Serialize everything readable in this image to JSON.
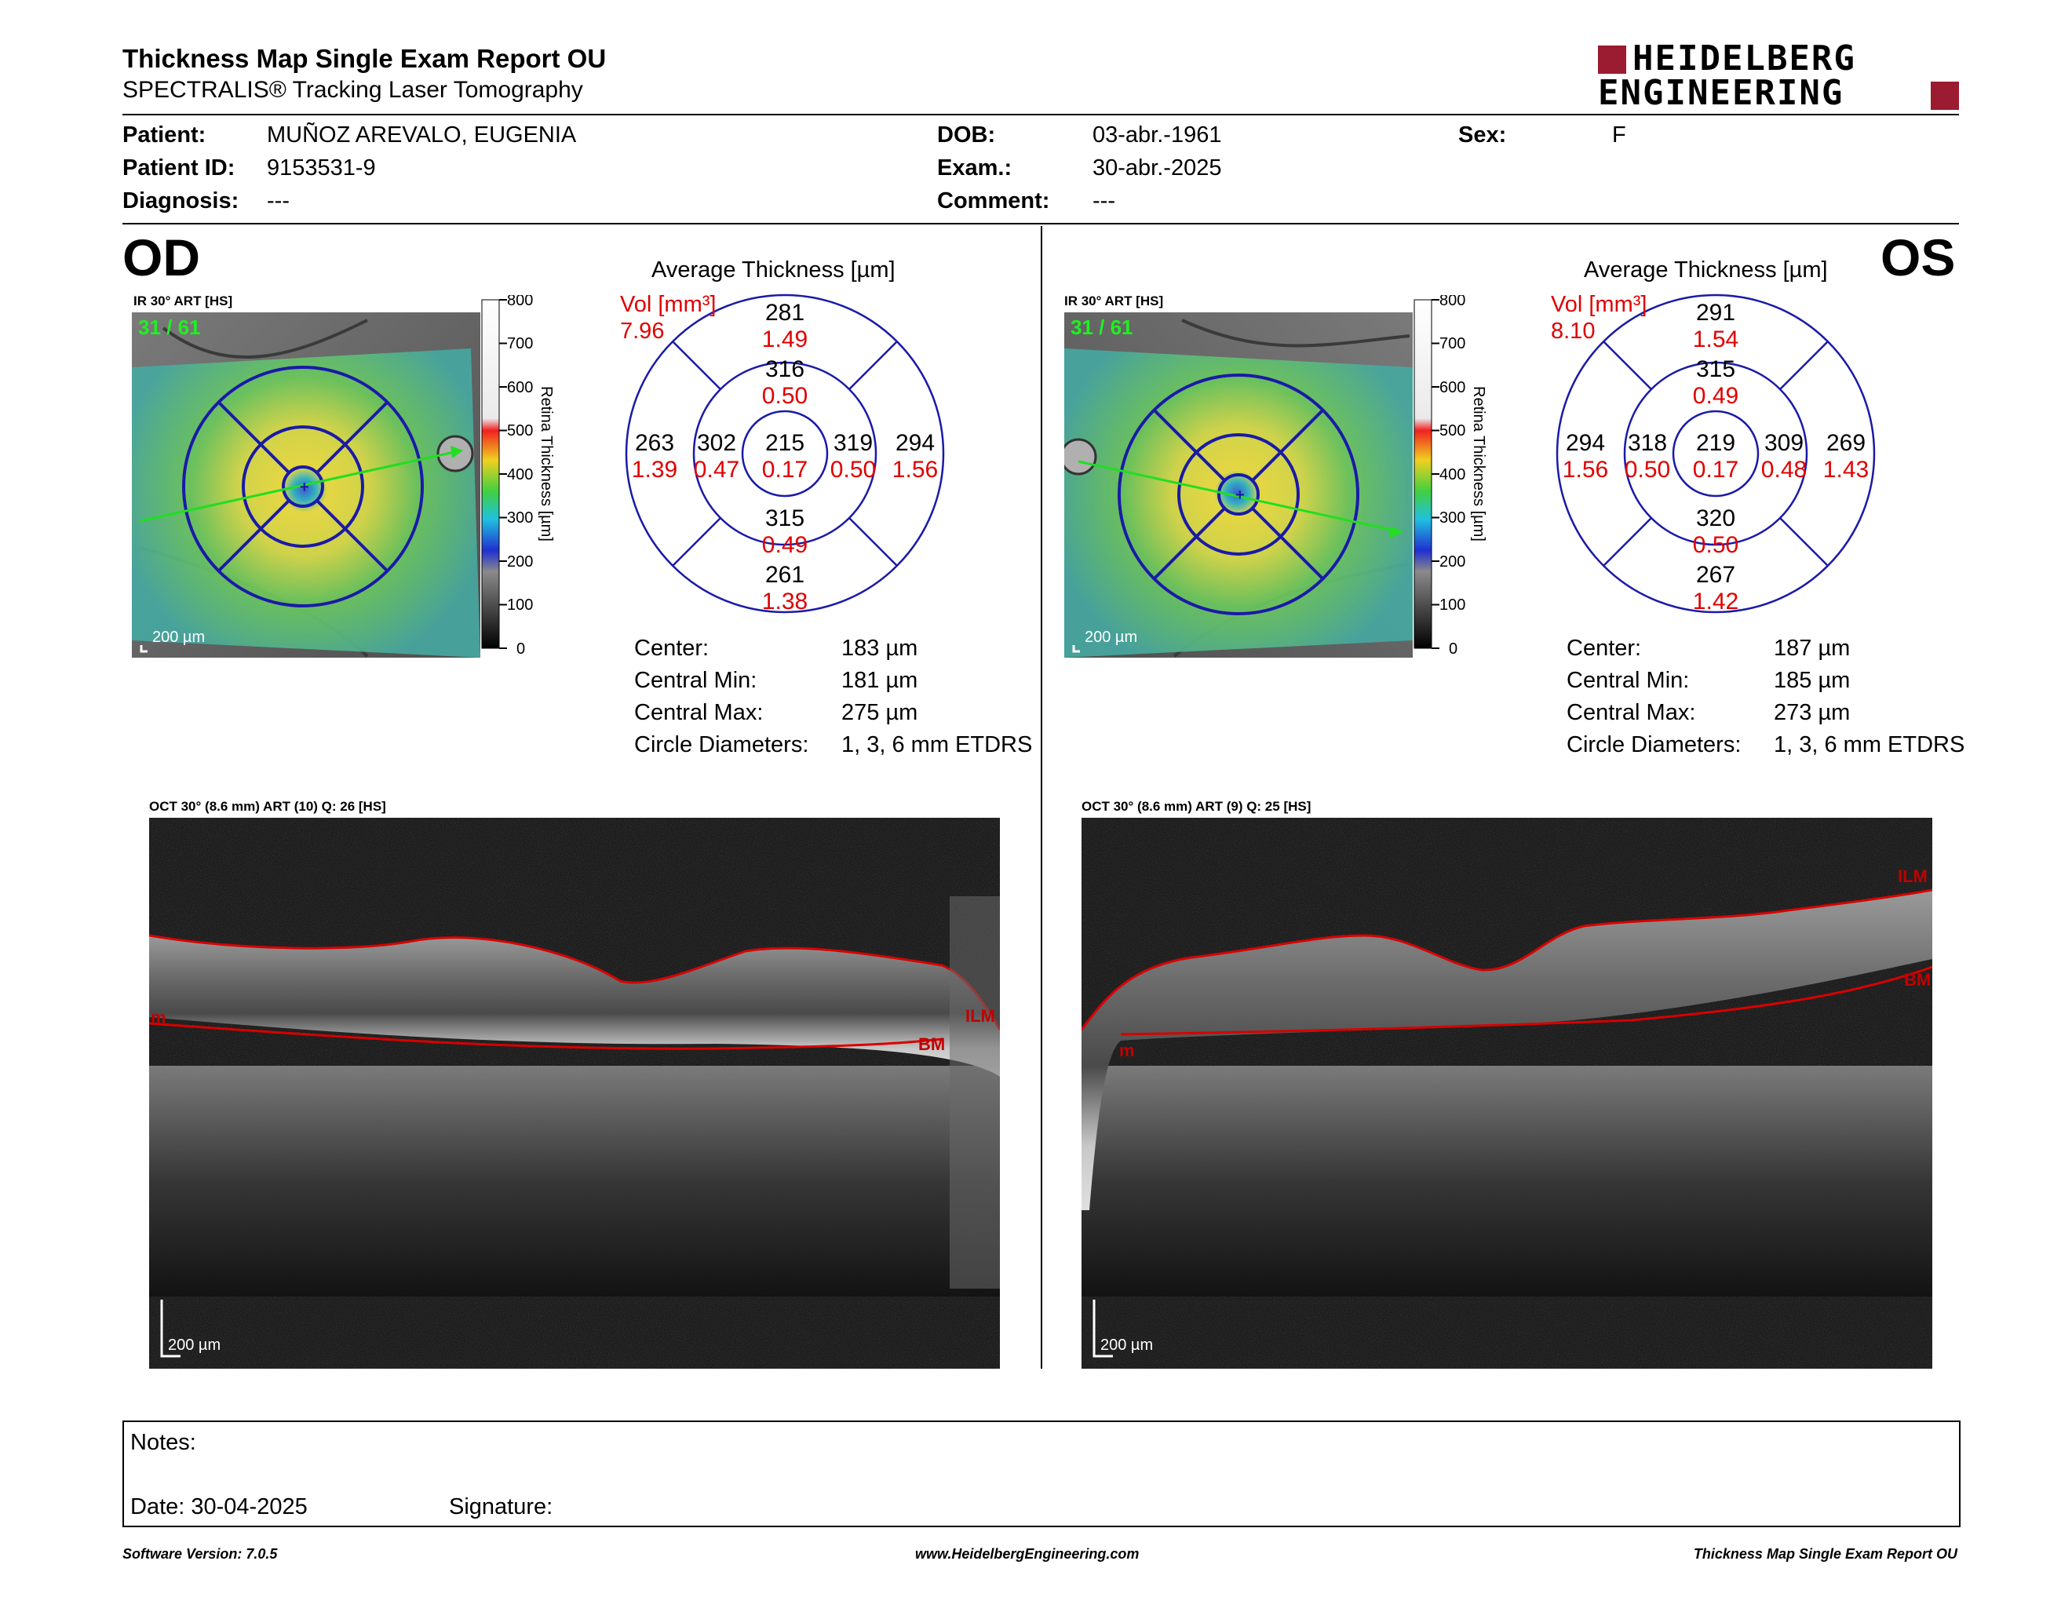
{
  "header": {
    "title": "Thickness Map Single Exam Report OU",
    "subtitle": "SPECTRALIS® Tracking Laser Tomography",
    "logo_line1": "HEIDELBERG",
    "logo_line2": "ENGINEERING"
  },
  "patient": {
    "patient_label": "Patient:",
    "patient_value": "MUÑOZ AREVALO, EUGENIA",
    "id_label": "Patient ID:",
    "id_value": "9153531-9",
    "diagnosis_label": "Diagnosis:",
    "diagnosis_value": "---",
    "dob_label": "DOB:",
    "dob_value": "03-abr.-1961",
    "exam_label": "Exam.:",
    "exam_value": "30-abr.-2025",
    "comment_label": "Comment:",
    "comment_value": "---",
    "sex_label": "Sex:",
    "sex_value": "F"
  },
  "colors": {
    "grid": "#1a1aa8",
    "volume": "#e00000",
    "ilm_line": "#d80000",
    "scan_line": "#22dd22"
  },
  "colorbar": {
    "ticks": [
      "800",
      "700",
      "600",
      "500",
      "400",
      "300",
      "200",
      "100",
      "0"
    ],
    "label": "Retina Thickness [µm]"
  },
  "od": {
    "eye": "OD",
    "ir_label": "IR 30° ART [HS]",
    "frames": "31 / 61",
    "scale": "200 µm",
    "avg_title": "Average Thickness [µm]",
    "vol_label": "Vol [mm³]",
    "vol_total": "7.96",
    "sectors": {
      "outer_sup": {
        "t": "281",
        "v": "1.49"
      },
      "inner_sup": {
        "t": "316",
        "v": "0.50"
      },
      "outer_left": {
        "t": "263",
        "v": "1.39"
      },
      "inner_left": {
        "t": "302",
        "v": "0.47"
      },
      "center": {
        "t": "215",
        "v": "0.17"
      },
      "inner_right": {
        "t": "319",
        "v": "0.50"
      },
      "outer_right": {
        "t": "294",
        "v": "1.56"
      },
      "inner_inf": {
        "t": "315",
        "v": "0.49"
      },
      "outer_inf": {
        "t": "261",
        "v": "1.38"
      }
    },
    "stats": [
      {
        "label": "Center:",
        "value": "183 µm"
      },
      {
        "label": "Central Min:",
        "value": "181 µm"
      },
      {
        "label": "Central Max:",
        "value": "275 µm"
      },
      {
        "label": "Circle Diameters:",
        "value": "1, 3, 6 mm ETDRS"
      }
    ],
    "oct_label": "OCT 30° (8.6 mm) ART (10) Q: 26 [HS]",
    "oct_scale": "200 µm",
    "ilm": "ILM",
    "bm": "BM",
    "edge_tag": "m"
  },
  "os": {
    "eye": "OS",
    "ir_label": "IR 30° ART [HS]",
    "frames": "31 / 61",
    "scale": "200 µm",
    "avg_title": "Average Thickness [µm]",
    "vol_label": "Vol [mm³]",
    "vol_total": "8.10",
    "sectors": {
      "outer_sup": {
        "t": "291",
        "v": "1.54"
      },
      "inner_sup": {
        "t": "315",
        "v": "0.49"
      },
      "outer_left": {
        "t": "294",
        "v": "1.56"
      },
      "inner_left": {
        "t": "318",
        "v": "0.50"
      },
      "center": {
        "t": "219",
        "v": "0.17"
      },
      "inner_right": {
        "t": "309",
        "v": "0.48"
      },
      "outer_right": {
        "t": "269",
        "v": "1.43"
      },
      "inner_inf": {
        "t": "320",
        "v": "0.50"
      },
      "outer_inf": {
        "t": "267",
        "v": "1.42"
      }
    },
    "stats": [
      {
        "label": "Center:",
        "value": "187 µm"
      },
      {
        "label": "Central Min:",
        "value": "185 µm"
      },
      {
        "label": "Central Max:",
        "value": "273 µm"
      },
      {
        "label": "Circle Diameters:",
        "value": "1, 3, 6 mm ETDRS"
      }
    ],
    "oct_label": "OCT 30° (8.6 mm) ART (9) Q: 25 [HS]",
    "oct_scale": "200 µm",
    "ilm": "ILM",
    "bm": "BM",
    "edge_tag": "m"
  },
  "notes": {
    "notes_label": "Notes:",
    "date_label": "Date: 30-04-2025",
    "signature_label": "Signature:"
  },
  "footer": {
    "left": "Software Version: 7.0.5",
    "center": "www.HeidelbergEngineering.com",
    "right": "Thickness Map Single Exam Report OU"
  }
}
